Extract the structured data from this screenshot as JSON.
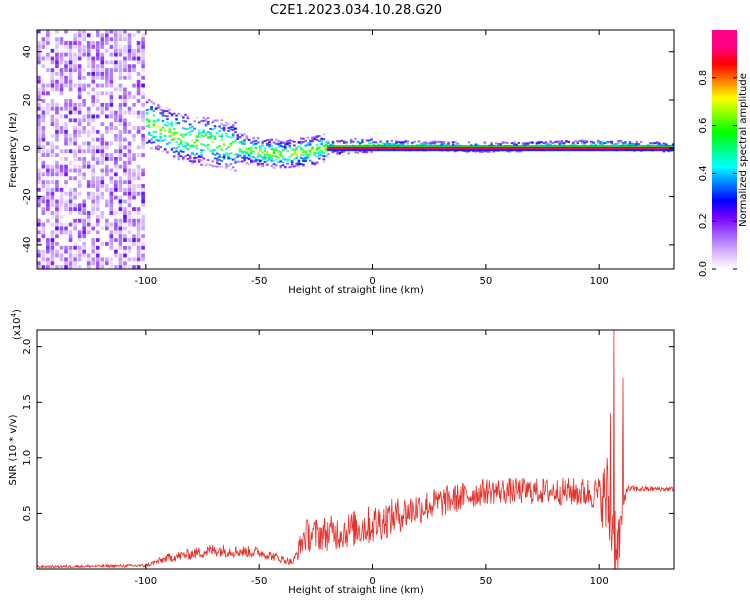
{
  "title": "C2E1.2023.034.10.28.G20",
  "chart_data": [
    {
      "type": "heatmap",
      "xlabel": "Height of straight line (km)",
      "ylabel": "Frequency (Hz)",
      "xlim": [
        -148,
        133
      ],
      "ylim": [
        -50,
        49
      ],
      "xticks": [
        -100,
        -50,
        0,
        50,
        100
      ],
      "yticks": [
        -40,
        -20,
        0,
        20,
        40
      ],
      "grid": false,
      "colorbar": {
        "label": "Normalized spectral amplitude",
        "range": [
          0,
          1
        ],
        "ticks": [
          0.0,
          0.2,
          0.4,
          0.6,
          0.8
        ],
        "colormap": [
          "#ffffff",
          "#d9b3ff",
          "#a060ff",
          "#7a00ff",
          "#0000ff",
          "#0080ff",
          "#00ffff",
          "#00ff80",
          "#00ff00",
          "#80ff00",
          "#ffff00",
          "#ff8000",
          "#ff0000",
          "#ff0080",
          "#ff0088"
        ]
      },
      "description_points": {
        "noise_region_x": [
          -148,
          -100
        ],
        "signal_center_freq": [
          {
            "x": -100,
            "y": 10
          },
          {
            "x": -90,
            "y": 6
          },
          {
            "x": -80,
            "y": 3
          },
          {
            "x": -70,
            "y": 2
          },
          {
            "x": -60,
            "y": 0
          },
          {
            "x": -50,
            "y": -2
          },
          {
            "x": -40,
            "y": -3
          },
          {
            "x": -30,
            "y": -2
          },
          {
            "x": -20,
            "y": 0
          },
          {
            "x": 0,
            "y": 1
          },
          {
            "x": 50,
            "y": 0
          },
          {
            "x": 100,
            "y": 1
          },
          {
            "x": 133,
            "y": 0
          }
        ]
      }
    },
    {
      "type": "line",
      "xlabel": "Height of straight line (km)",
      "ylabel": "SNR (10 * v/v)",
      "yscale_label": "(x10",
      "yscale_exp": "4",
      "xlim": [
        -148,
        133
      ],
      "ylim": [
        0,
        2.15
      ],
      "xticks": [
        -100,
        -50,
        0,
        50,
        100
      ],
      "yticks": [
        0.5,
        1.0,
        1.5,
        2.0
      ],
      "ytick_labels": [
        "0.5",
        "1.0",
        "1.5",
        "2.0"
      ],
      "color": "#e8302a",
      "grid": false,
      "profile": [
        {
          "x": -148,
          "y": 0.02,
          "noise": 0.01
        },
        {
          "x": -100,
          "y": 0.03,
          "noise": 0.015
        },
        {
          "x": -90,
          "y": 0.1,
          "noise": 0.04
        },
        {
          "x": -70,
          "y": 0.17,
          "noise": 0.06
        },
        {
          "x": -50,
          "y": 0.15,
          "noise": 0.05
        },
        {
          "x": -35,
          "y": 0.06,
          "noise": 0.03
        },
        {
          "x": -30,
          "y": 0.3,
          "noise": 0.15
        },
        {
          "x": -15,
          "y": 0.33,
          "noise": 0.16
        },
        {
          "x": 0,
          "y": 0.4,
          "noise": 0.18
        },
        {
          "x": 20,
          "y": 0.55,
          "noise": 0.15
        },
        {
          "x": 50,
          "y": 0.7,
          "noise": 0.12
        },
        {
          "x": 80,
          "y": 0.7,
          "noise": 0.12
        },
        {
          "x": 100,
          "y": 0.68,
          "noise": 0.15
        },
        {
          "x": 104,
          "y": 0.6,
          "noise": 0.5
        },
        {
          "x": 108,
          "y": 0.2,
          "noise": 0.3
        },
        {
          "x": 112,
          "y": 0.72,
          "noise": 0.03
        },
        {
          "x": 133,
          "y": 0.72,
          "noise": 0.02
        }
      ],
      "spikes": [
        {
          "x": 106.5,
          "y": 2.15
        },
        {
          "x": 105.0,
          "y": 1.4
        },
        {
          "x": 110.5,
          "y": 1.72
        },
        {
          "x": 109.0,
          "y": 0.1
        }
      ]
    }
  ]
}
